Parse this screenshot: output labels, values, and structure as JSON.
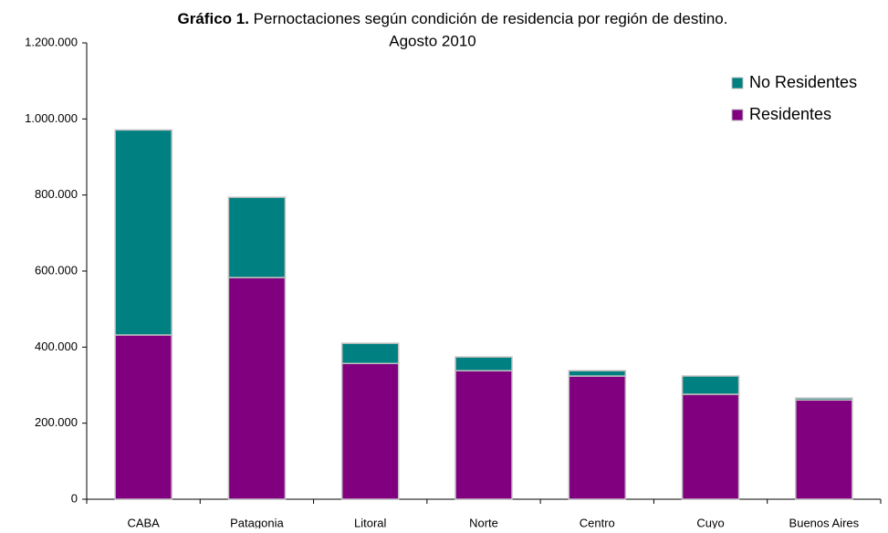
{
  "chart_data": {
    "type": "stacked_bar",
    "title_label": "Gráfico 1.",
    "title": "Pernoctaciones según condición de residencia por región de destino.",
    "subtitle": "Agosto 2010",
    "categories": [
      "CABA",
      "Patagonia",
      "Litoral",
      "Norte",
      "Centro",
      "Cuyo",
      "Buenos Aires"
    ],
    "series": [
      {
        "name": "Residentes",
        "color": "#800080",
        "values": [
          432000,
          583000,
          357000,
          338000,
          324000,
          276000,
          261000
        ]
      },
      {
        "name": "No Residentes",
        "color": "#008080",
        "values": [
          539000,
          211000,
          53000,
          36000,
          14000,
          48000,
          5000
        ]
      }
    ],
    "ylim": [
      0,
      1200000
    ],
    "yticks": [
      0,
      {
        "value": 200000,
        "label": "200.000"
      },
      {
        "value": 400000,
        "label": "400.000"
      },
      {
        "value": 600000,
        "label": "600.000"
      },
      {
        "value": 800000,
        "label": "800.000"
      },
      {
        "value": 1000000,
        "label": "1.000.000"
      },
      {
        "value": 1200000,
        "label": "1.200.000"
      }
    ],
    "grid": false,
    "legend": "upper right"
  }
}
